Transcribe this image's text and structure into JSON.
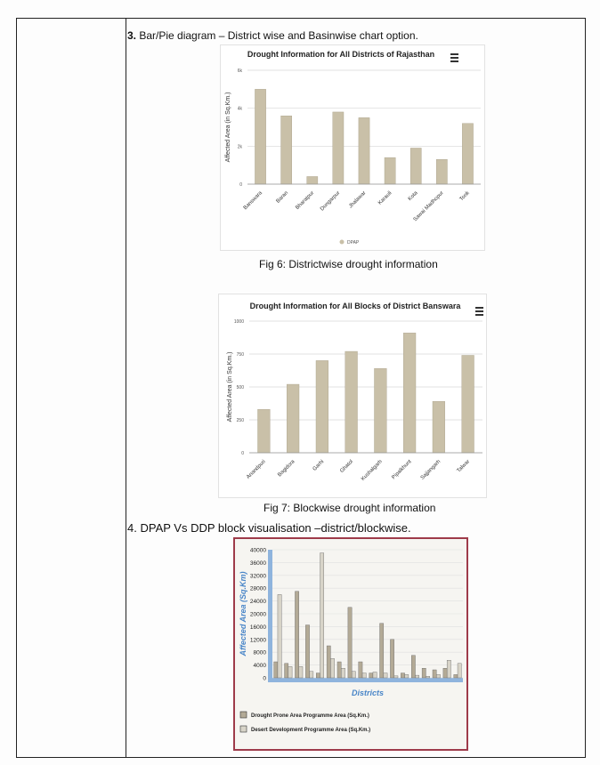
{
  "section3": {
    "number": "3.",
    "text": "Bar/Pie diagram – District wise and Basinwise chart option."
  },
  "fig6": {
    "caption": "Fig 6: Districtwise drought information",
    "chart_data": {
      "type": "bar",
      "title": "Drought Information for All Districts of Rajasthan",
      "ylabel": "Affected Area (in Sq.Km.)",
      "xlabel": "",
      "categories": [
        "Banswara",
        "Baran",
        "Bharatpur",
        "Dungarpur",
        "Jhalawar",
        "Karauli",
        "Kota",
        "Sawai Madhopur",
        "Tonk"
      ],
      "series": [
        {
          "name": "DPAP",
          "values": [
            5.0,
            3.6,
            0.4,
            3.8,
            3.5,
            1.4,
            1.9,
            1.3,
            3.2
          ]
        }
      ],
      "ylim": [
        0,
        6
      ],
      "yticks": [
        "0",
        "2k",
        "4k",
        "6k"
      ],
      "legend": "bottom-center",
      "grid": true,
      "bar_color": "#c9c0a8"
    }
  },
  "fig7": {
    "caption": "Fig 7: Blockwise drought information",
    "chart_data": {
      "type": "bar",
      "title": "Drought Information for All Blocks of District Banswara",
      "ylabel": "Affected Area (in Sq.Km.)",
      "xlabel": "",
      "categories": [
        "Anandpuri",
        "Bagidora",
        "Garhi",
        "Ghatol",
        "Kushalgarh",
        "Pipalkhunt",
        "Sajjangarh",
        "Talwar"
      ],
      "values": [
        330,
        520,
        700,
        770,
        640,
        910,
        390,
        740
      ],
      "ylim": [
        0,
        1000
      ],
      "yticks": [
        "0",
        "250",
        "500",
        "750",
        "1000"
      ],
      "grid": true,
      "bar_color": "#c9c0a8"
    }
  },
  "section4": {
    "number": "4.",
    "text": "DPAP Vs DDP block visualisation –district/blockwise."
  },
  "fig8": {
    "chart_data": {
      "type": "bar",
      "title": "",
      "ylabel": "Affected Area (Sq.Km)",
      "xlabel": "Districts",
      "ylim": [
        0,
        40000
      ],
      "yticks": [
        "0",
        "4000",
        "8000",
        "12000",
        "16000",
        "20000",
        "24000",
        "28000",
        "32000",
        "36000",
        "40000"
      ],
      "categories": [
        "",
        "",
        "",
        "",
        "",
        "",
        "",
        "",
        "",
        "",
        "",
        "",
        "",
        "",
        "",
        "",
        "",
        ""
      ],
      "series": [
        {
          "name": "Drought Prone Area Programme Area (Sq.Km.)",
          "values": [
            5000,
            4500,
            27000,
            16500,
            1500,
            10000,
            5000,
            22000,
            5000,
            1500,
            17000,
            12000,
            1500,
            7000,
            3000,
            2500,
            3000,
            1000
          ]
        },
        {
          "name": "Desert Development Programme Area (Sq.Km.)",
          "values": [
            26000,
            3500,
            3500,
            2000,
            39000,
            6000,
            3000,
            2000,
            1500,
            1800,
            1500,
            600,
            1000,
            800,
            500,
            1000,
            5500,
            4500
          ]
        }
      ],
      "legend": "bottom-left",
      "colors": [
        "#b3aa96",
        "#d8d4c8"
      ]
    }
  }
}
